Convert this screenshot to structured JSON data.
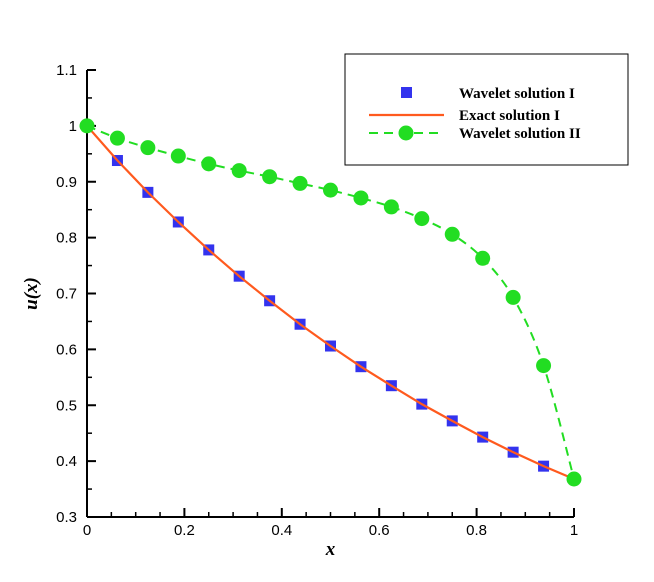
{
  "chart_data": {
    "type": "line",
    "xlabel": "x",
    "ylabel": "u(x)",
    "xlim": [
      0,
      1
    ],
    "ylim": [
      0.3,
      1.1
    ],
    "xticks": [
      "0",
      "0.2",
      "0.4",
      "0.6",
      "0.8",
      "1"
    ],
    "yticks": [
      "0.3",
      "0.4",
      "0.5",
      "0.6",
      "0.7",
      "0.8",
      "0.9",
      "1",
      "1.1"
    ],
    "grid": false,
    "legend_position": "top-right",
    "series": [
      {
        "name": "Wavelet solution I",
        "style": "markers",
        "marker": "square",
        "color": "#3333ee",
        "x": [
          0.0625,
          0.125,
          0.1875,
          0.25,
          0.3125,
          0.375,
          0.4375,
          0.5,
          0.5625,
          0.625,
          0.6875,
          0.75,
          0.8125,
          0.875,
          0.9375
        ],
        "y": [
          0.938,
          0.881,
          0.828,
          0.778,
          0.731,
          0.687,
          0.645,
          0.606,
          0.569,
          0.535,
          0.502,
          0.472,
          0.443,
          0.416,
          0.391
        ]
      },
      {
        "name": "Exact solution I",
        "style": "line",
        "color": "#ff5a1e",
        "x": [
          0,
          0.0625,
          0.125,
          0.1875,
          0.25,
          0.3125,
          0.375,
          0.4375,
          0.5,
          0.5625,
          0.625,
          0.6875,
          0.75,
          0.8125,
          0.875,
          0.9375,
          1
        ],
        "y": [
          1.0,
          0.938,
          0.881,
          0.828,
          0.778,
          0.731,
          0.687,
          0.645,
          0.606,
          0.569,
          0.535,
          0.502,
          0.472,
          0.443,
          0.416,
          0.391,
          0.368
        ]
      },
      {
        "name": "Wavelet solution II",
        "style": "dashed-line-markers",
        "marker": "circle",
        "color": "#22dd22",
        "x": [
          0,
          0.0625,
          0.125,
          0.1875,
          0.25,
          0.3125,
          0.375,
          0.4375,
          0.5,
          0.5625,
          0.625,
          0.6875,
          0.75,
          0.8125,
          0.875,
          0.9375,
          1
        ],
        "y": [
          1.0,
          0.978,
          0.961,
          0.946,
          0.932,
          0.92,
          0.909,
          0.897,
          0.885,
          0.871,
          0.855,
          0.834,
          0.806,
          0.763,
          0.693,
          0.571,
          0.368
        ]
      }
    ]
  }
}
